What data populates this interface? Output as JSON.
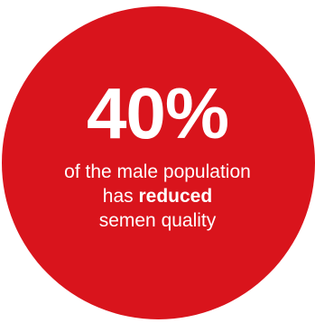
{
  "colors": {
    "circle": "#d9141c",
    "text": "#ffffff",
    "background": "#ffffff"
  },
  "stat": {
    "value": "40%",
    "line1": "of the male population",
    "line2_prefix": "has",
    "line2_emphasis": "reduced",
    "line3": "semen quality"
  }
}
